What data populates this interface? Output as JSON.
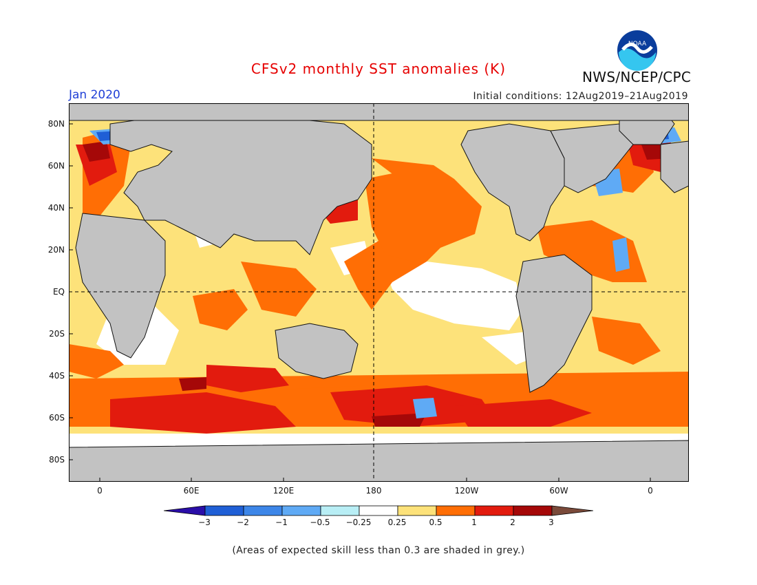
{
  "header": {
    "title": "CFSv2 monthly SST anomalies (K)",
    "month": "Jan 2020",
    "initial_conditions": "Initial conditions: 12Aug2019–21Aug2019",
    "agency": "NWS/NCEP/CPC",
    "logo_text": "NOAA"
  },
  "axes": {
    "lat_labels": [
      "80N",
      "60N",
      "40N",
      "20N",
      "EQ",
      "20S",
      "40S",
      "60S",
      "80S"
    ],
    "lon_labels": [
      "0",
      "60E",
      "120E",
      "180",
      "120W",
      "60W",
      "0"
    ]
  },
  "colorbar": {
    "labels": [
      "−3",
      "−2",
      "−1",
      "−0.5",
      "−0.25",
      "0.25",
      "0.5",
      "1",
      "2",
      "3"
    ],
    "colors": [
      "#2a0ea8",
      "#1f5fd6",
      "#3d86e8",
      "#5faaf5",
      "#b8eef5",
      "#ffffff",
      "#fde27a",
      "#ff6e05",
      "#e21b0e",
      "#a50808",
      "#7a4a3a"
    ],
    "land_color": "#c2c2c2"
  },
  "note": "(Areas of expected skill less than 0.3 are shaded in grey.)"
}
